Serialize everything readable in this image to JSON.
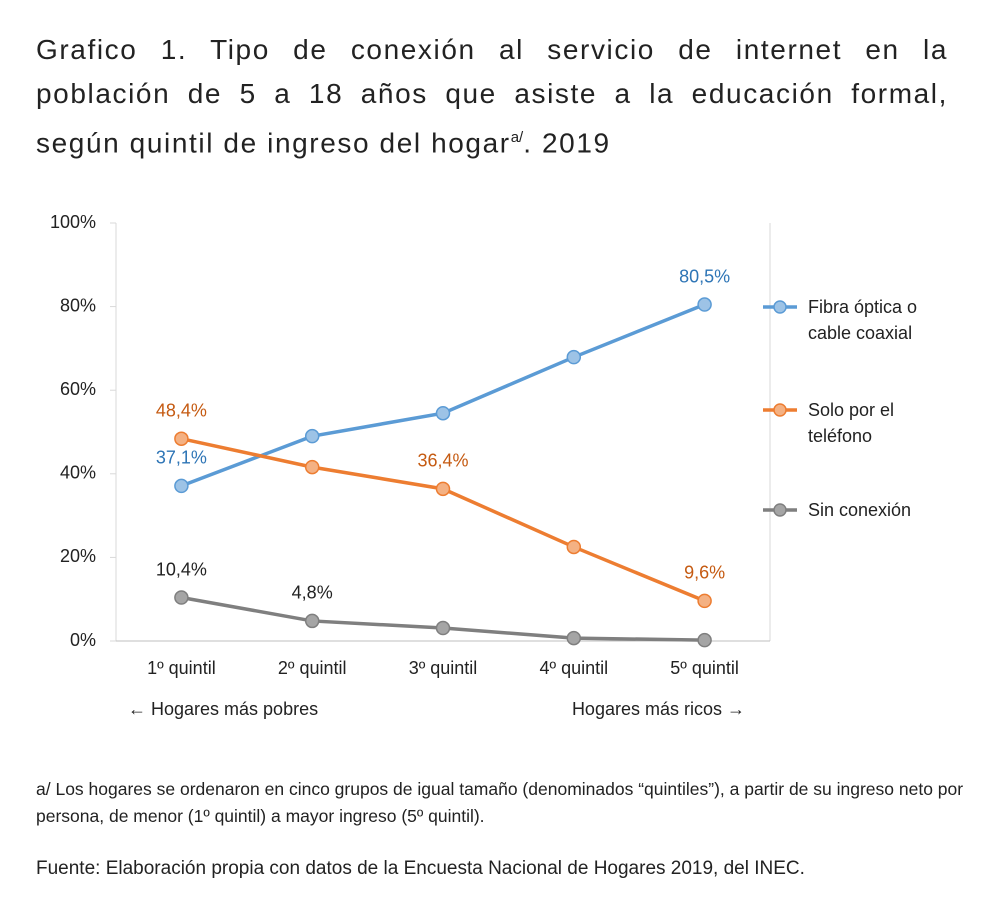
{
  "chart_data": {
    "type": "line",
    "title": "Grafico 1. Tipo de conexión al servicio de internet en la población de 5 a 18 años que asiste a la educación formal, según quintil de ingreso del hogar",
    "title_superscript": "a/",
    "title_end": ". 2019",
    "categories": [
      "1º quintil",
      "2º quintil",
      "3º quintil",
      "4º quintil",
      "5º quintil"
    ],
    "ylim": [
      0,
      100
    ],
    "yticks": [
      {
        "value": 0,
        "label": "0%"
      },
      {
        "value": 20,
        "label": "20%"
      },
      {
        "value": 40,
        "label": "40%"
      },
      {
        "value": 60,
        "label": "60%"
      },
      {
        "value": 80,
        "label": "80%"
      },
      {
        "value": 100,
        "label": "100%"
      }
    ],
    "grid": false,
    "legend": "right",
    "series": [
      {
        "name": "Fibra óptica o cable coaxial",
        "color": "#5b9bd5",
        "marker_color": "#9dc3e6",
        "label_color": "#2e75b6",
        "values": [
          37.1,
          49.0,
          54.5,
          67.9,
          80.5
        ],
        "value_labels": [
          "37,1%",
          null,
          null,
          null,
          "80,5%"
        ]
      },
      {
        "name": "Solo por el teléfono",
        "color": "#ed7d31",
        "marker_color": "#f4b183",
        "label_color": "#c55a11",
        "values": [
          48.4,
          41.6,
          36.4,
          22.5,
          9.6
        ],
        "value_labels": [
          "48,4%",
          null,
          "36,4%",
          null,
          "9,6%"
        ]
      },
      {
        "name": "Sin conexión",
        "color": "#7f7f7f",
        "marker_color": "#a5a5a5",
        "label_color": "#222222",
        "values": [
          10.4,
          4.8,
          3.1,
          0.7,
          0.2
        ],
        "value_labels": [
          "10,4%",
          "4,8%",
          null,
          null,
          null
        ]
      }
    ],
    "annotations": [
      "← Hogares más pobres",
      "Hogares más ricos →"
    ],
    "footnote": "a/ Los hogares se ordenaron en cinco grupos de igual tamaño (denominados “quintiles”), a partir de su ingreso neto por persona, de menor (1º quintil) a mayor ingreso (5º quintil).",
    "source": "Fuente: Elaboración propia con datos de la Encuesta Nacional de Hogares 2019, del INEC."
  }
}
